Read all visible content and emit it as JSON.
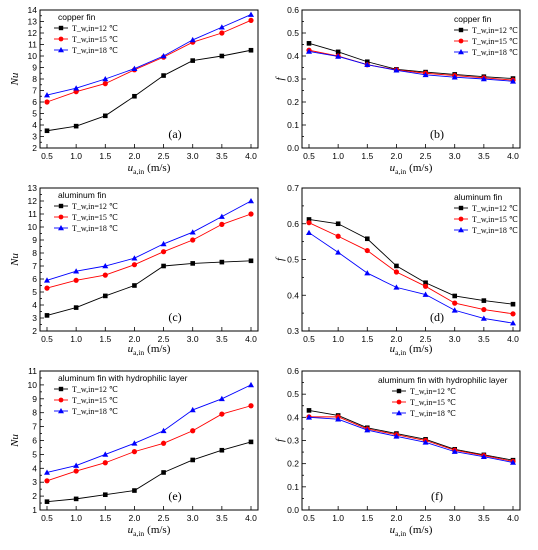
{
  "figure": {
    "xlabel_symbol": "u",
    "xlabel_sub": "a,in",
    "xlabel_unit": "(m/s)"
  },
  "colors": {
    "series": [
      "#000000",
      "#ff0000",
      "#0000ff"
    ]
  },
  "markers": [
    "square",
    "circle",
    "triangle"
  ],
  "chart_data": [
    {
      "id": "a",
      "type": "line",
      "panel_label": "(a)",
      "legend_title": "copper fin",
      "ylabel": "Nu",
      "xlabel": "u_a,in (m/s)",
      "xlim": [
        0.5,
        4.0
      ],
      "ylim": [
        2,
        14
      ],
      "yticks": [
        2,
        3,
        4,
        5,
        6,
        7,
        8,
        9,
        10,
        11,
        12,
        13,
        14
      ],
      "x": [
        0.5,
        1.0,
        1.5,
        2.0,
        2.5,
        3.0,
        3.5,
        4.0
      ],
      "xticklabels": [
        "0.5",
        "1.0",
        "1.5",
        "2.0",
        "2.5",
        "3.0",
        "3.5",
        "4.0"
      ],
      "legend_position": "top-left",
      "series": [
        {
          "name": "T_w,in=12 ℃",
          "values": [
            3.5,
            3.9,
            4.8,
            6.5,
            8.3,
            9.6,
            10.0,
            10.5
          ]
        },
        {
          "name": "T_w,in=15 ℃",
          "values": [
            6.0,
            6.9,
            7.6,
            8.8,
            9.9,
            11.2,
            12.0,
            13.1
          ]
        },
        {
          "name": "T_w,in=18 ℃",
          "values": [
            6.6,
            7.2,
            8.0,
            8.9,
            10.0,
            11.4,
            12.5,
            13.6
          ]
        }
      ]
    },
    {
      "id": "b",
      "type": "line",
      "panel_label": "(b)",
      "legend_title": "copper fin",
      "ylabel": "f",
      "xlabel": "u_a,in (m/s)",
      "xlim": [
        0.5,
        4.0
      ],
      "ylim": [
        0.0,
        0.6
      ],
      "yticks": [
        0.0,
        0.1,
        0.2,
        0.3,
        0.4,
        0.5,
        0.6
      ],
      "x": [
        0.5,
        1.0,
        1.5,
        2.0,
        2.5,
        3.0,
        3.5,
        4.0
      ],
      "xticklabels": [
        "0.5",
        "1.0",
        "1.5",
        "2.0",
        "2.5",
        "3.0",
        "3.5",
        "4.0"
      ],
      "legend_position": "top-right",
      "series": [
        {
          "name": "T_w,in=12 ℃",
          "values": [
            0.455,
            0.418,
            0.375,
            0.342,
            0.33,
            0.32,
            0.31,
            0.302
          ]
        },
        {
          "name": "T_w,in=15 ℃",
          "values": [
            0.425,
            0.4,
            0.362,
            0.34,
            0.325,
            0.315,
            0.305,
            0.295
          ]
        },
        {
          "name": "T_w,in=18 ℃",
          "values": [
            0.42,
            0.398,
            0.362,
            0.338,
            0.318,
            0.308,
            0.3,
            0.29
          ]
        }
      ]
    },
    {
      "id": "c",
      "type": "line",
      "panel_label": "(c)",
      "legend_title": "aluminum fin",
      "ylabel": "Nu",
      "xlabel": "u_a,in (m/s)",
      "xlim": [
        0.5,
        4.0
      ],
      "ylim": [
        2,
        13
      ],
      "yticks": [
        2,
        3,
        4,
        5,
        6,
        7,
        8,
        9,
        10,
        11,
        12,
        13
      ],
      "x": [
        0.5,
        1.0,
        1.5,
        2.0,
        2.5,
        3.0,
        3.5,
        4.0
      ],
      "xticklabels": [
        "0.5",
        "1.0",
        "1.5",
        "2.0",
        "2.5",
        "3.0",
        "3.5",
        "4.0"
      ],
      "legend_position": "top-left",
      "series": [
        {
          "name": "T_w,in=12 ℃",
          "values": [
            3.2,
            3.8,
            4.7,
            5.5,
            7.0,
            7.2,
            7.3,
            7.4
          ]
        },
        {
          "name": "T_w,in=15 ℃",
          "values": [
            5.3,
            5.9,
            6.3,
            7.1,
            8.1,
            9.0,
            10.2,
            11.0
          ]
        },
        {
          "name": "T_w,in=18 ℃",
          "values": [
            5.9,
            6.6,
            7.0,
            7.6,
            8.7,
            9.6,
            10.8,
            12.0
          ]
        }
      ]
    },
    {
      "id": "d",
      "type": "line",
      "panel_label": "(d)",
      "legend_title": "aluminum fin",
      "ylabel": "f",
      "xlabel": "u_a,in (m/s)",
      "xlim": [
        0.5,
        4.0
      ],
      "ylim": [
        0.3,
        0.7
      ],
      "yticks": [
        0.3,
        0.4,
        0.5,
        0.6,
        0.7
      ],
      "x": [
        0.5,
        1.0,
        1.5,
        2.0,
        2.5,
        3.0,
        3.5,
        4.0
      ],
      "xticklabels": [
        "0.5",
        "1.0",
        "1.5",
        "2.0",
        "2.5",
        "3.0",
        "3.5",
        "4.0"
      ],
      "legend_position": "top-right",
      "series": [
        {
          "name": "T_w,in=12 ℃",
          "values": [
            0.612,
            0.6,
            0.558,
            0.482,
            0.435,
            0.398,
            0.385,
            0.375
          ]
        },
        {
          "name": "T_w,in=15 ℃",
          "values": [
            0.603,
            0.565,
            0.525,
            0.465,
            0.425,
            0.378,
            0.36,
            0.348
          ]
        },
        {
          "name": "T_w,in=18 ℃",
          "values": [
            0.575,
            0.52,
            0.462,
            0.422,
            0.402,
            0.358,
            0.335,
            0.322
          ]
        }
      ]
    },
    {
      "id": "e",
      "type": "line",
      "panel_label": "(e)",
      "legend_title": "aluminum fin with hydrophilic layer",
      "ylabel": "Nu",
      "xlabel": "u_a,in (m/s)",
      "xlim": [
        0.5,
        4.0
      ],
      "ylim": [
        1,
        11
      ],
      "yticks": [
        1,
        2,
        3,
        4,
        5,
        6,
        7,
        8,
        9,
        10,
        11
      ],
      "x": [
        0.5,
        1.0,
        1.5,
        2.0,
        2.5,
        3.0,
        3.5,
        4.0
      ],
      "xticklabels": [
        "0.5",
        "1.0",
        "1.5",
        "2.0",
        "2.5",
        "3.0",
        "3.5",
        "4.0"
      ],
      "legend_position": "top-left",
      "series": [
        {
          "name": "T_w,in=12 ℃",
          "values": [
            1.6,
            1.8,
            2.1,
            2.4,
            3.7,
            4.6,
            5.3,
            5.9
          ]
        },
        {
          "name": "T_w,in=15 ℃",
          "values": [
            3.1,
            3.8,
            4.4,
            5.2,
            5.8,
            6.7,
            7.9,
            8.5
          ]
        },
        {
          "name": "T_w,in=18 ℃",
          "values": [
            3.7,
            4.2,
            5.0,
            5.8,
            6.7,
            8.2,
            9.0,
            10.0
          ]
        }
      ]
    },
    {
      "id": "f",
      "type": "line",
      "panel_label": "(f)",
      "legend_title": "aluminum fin with hydrophilic layer",
      "ylabel": "f",
      "xlabel": "u_a,in (m/s)",
      "xlim": [
        0.5,
        4.0
      ],
      "ylim": [
        0.0,
        0.6
      ],
      "yticks": [
        0.0,
        0.1,
        0.2,
        0.3,
        0.4,
        0.5,
        0.6
      ],
      "x": [
        0.5,
        1.0,
        1.5,
        2.0,
        2.5,
        3.0,
        3.5,
        4.0
      ],
      "xticklabels": [
        "0.5",
        "1.0",
        "1.5",
        "2.0",
        "2.5",
        "3.0",
        "3.5",
        "4.0"
      ],
      "legend_position": "top-right",
      "series": [
        {
          "name": "T_w,in=12 ℃",
          "values": [
            0.43,
            0.408,
            0.355,
            0.33,
            0.305,
            0.262,
            0.238,
            0.215
          ]
        },
        {
          "name": "T_w,in=15 ℃",
          "values": [
            0.402,
            0.402,
            0.35,
            0.325,
            0.3,
            0.258,
            0.235,
            0.21
          ]
        },
        {
          "name": "T_w,in=18 ℃",
          "values": [
            0.4,
            0.392,
            0.345,
            0.318,
            0.292,
            0.252,
            0.23,
            0.205
          ]
        }
      ]
    }
  ]
}
